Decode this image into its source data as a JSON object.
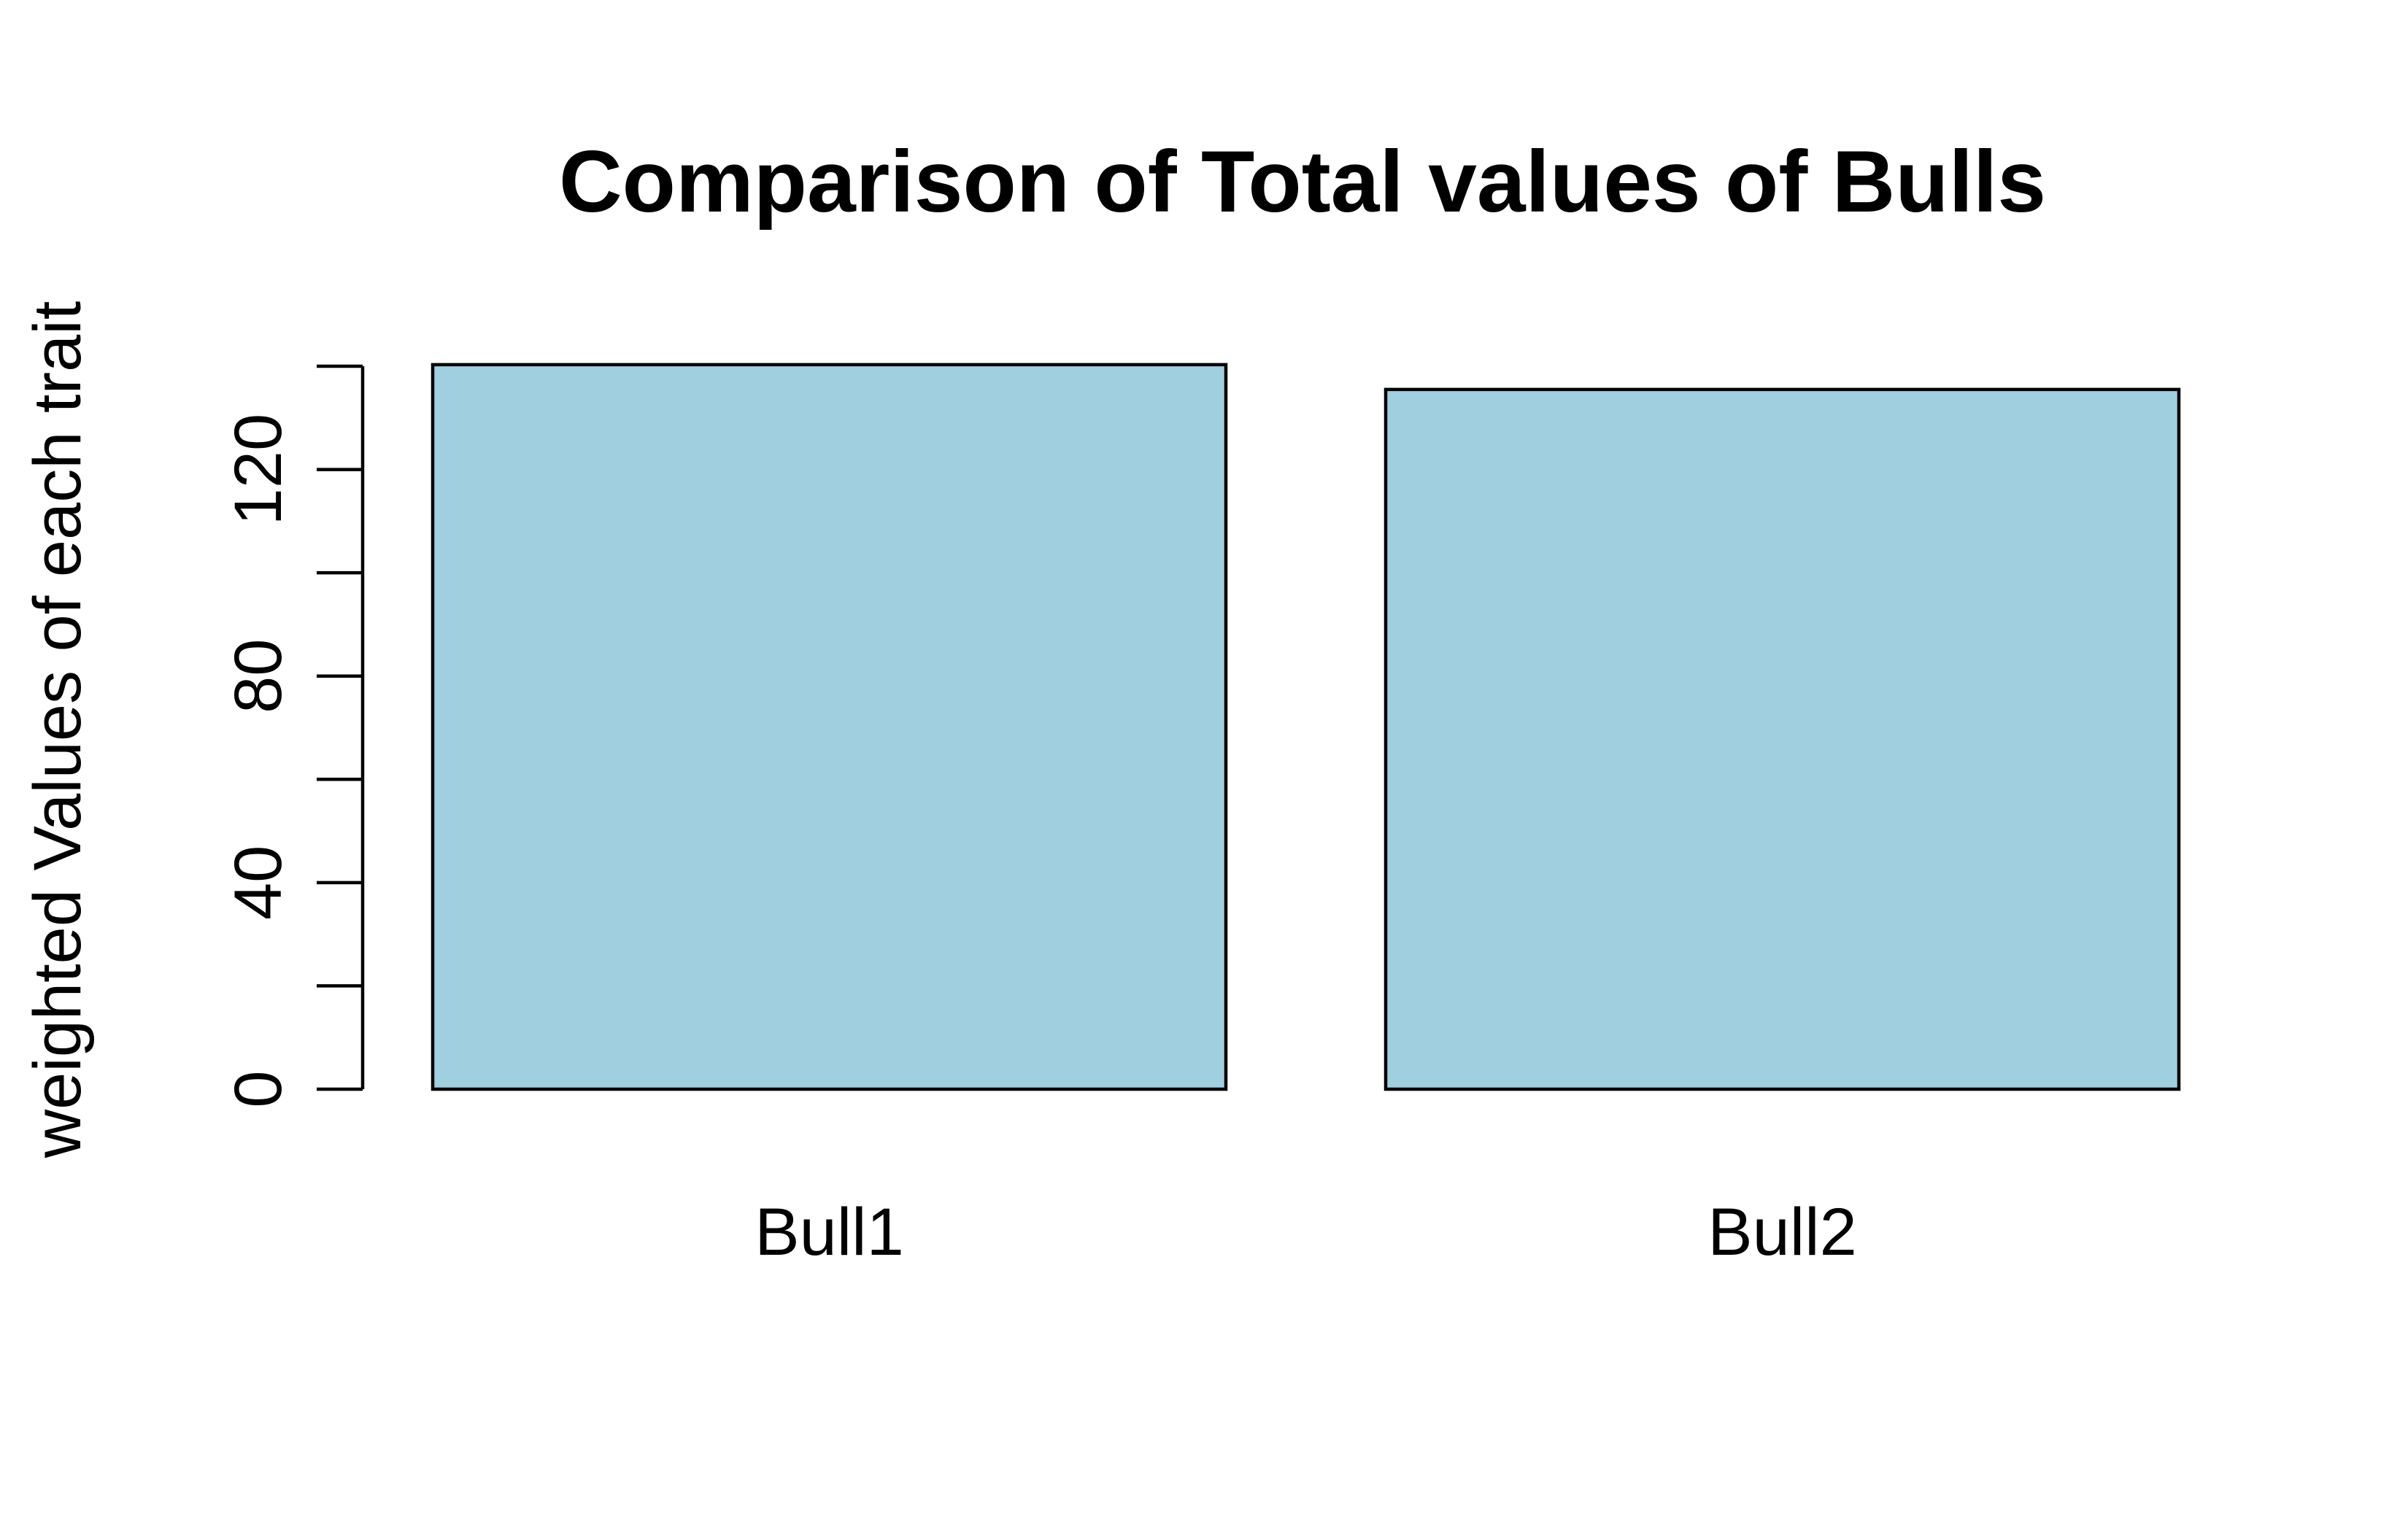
{
  "chart_data": {
    "type": "bar",
    "title": "Comparison of Total values of Bulls",
    "xlabel": "",
    "ylabel": "weighted Values of each trait",
    "categories": [
      "Bull1",
      "Bull2"
    ],
    "values": [
      140.3,
      135.5
    ],
    "ylim": [
      0,
      140
    ],
    "yticks": [
      0,
      20,
      40,
      60,
      80,
      100,
      120,
      140
    ],
    "ytick_labels": [
      "0",
      "",
      "40",
      "",
      "80",
      "",
      "120",
      ""
    ],
    "bar_color": "#a0cfdf",
    "grid": false,
    "legend": "none"
  }
}
